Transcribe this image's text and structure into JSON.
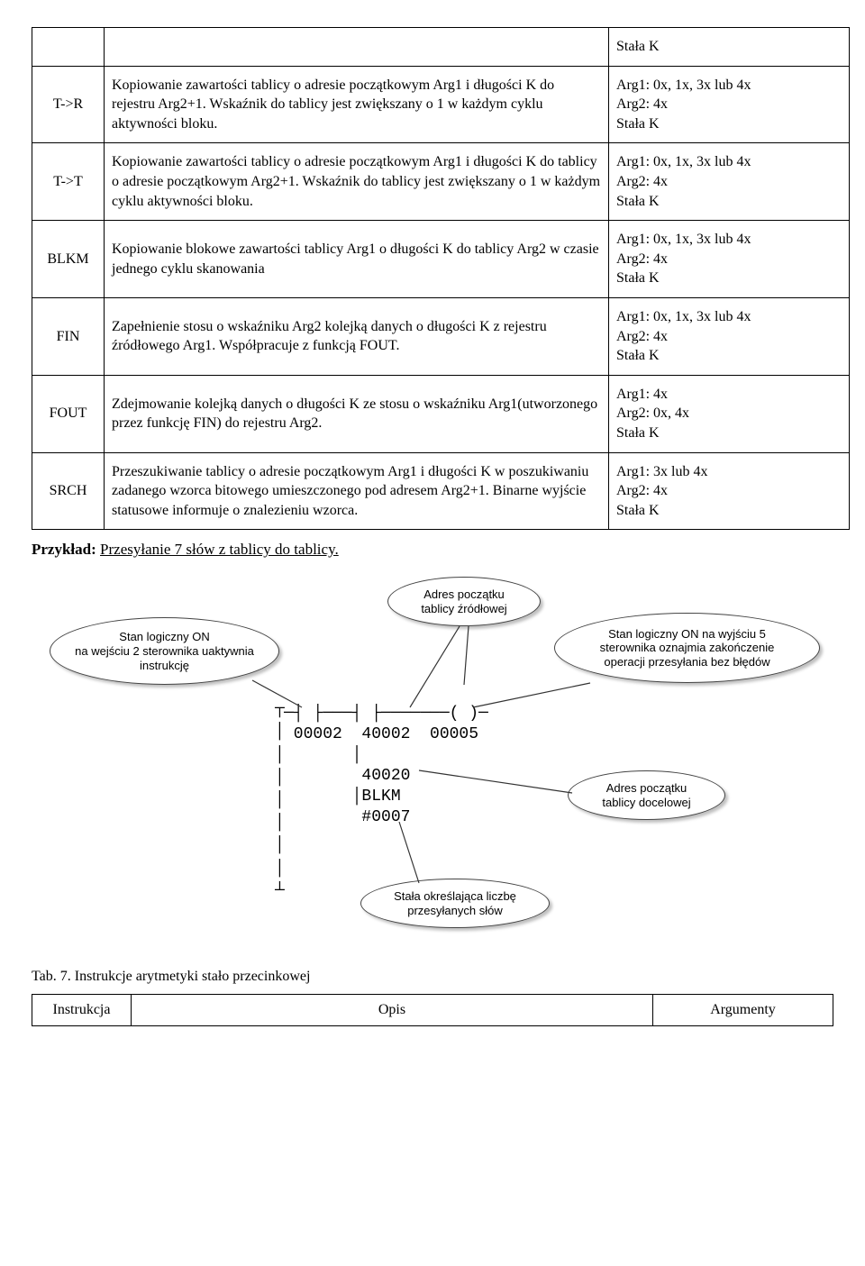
{
  "rows": [
    {
      "code": "",
      "desc": "",
      "args": "Stała K"
    },
    {
      "code": "T->R",
      "desc": "Kopiowanie zawartości tablicy o adresie początkowym Arg1 i długości K do rejestru Arg2+1. Wskaźnik do tablicy jest zwiększany o 1 w każdym cyklu aktywności bloku.",
      "args": "Arg1: 0x, 1x, 3x lub 4x\nArg2: 4x\nStała K"
    },
    {
      "code": "T->T",
      "desc": "Kopiowanie zawartości tablicy o adresie początkowym Arg1 i długości K do tablicy o adresie początkowym Arg2+1. Wskaźnik do tablicy jest zwiększany o 1 w każdym cyklu aktywności bloku.",
      "args": "Arg1: 0x, 1x, 3x lub 4x\nArg2: 4x\nStała K"
    },
    {
      "code": "BLKM",
      "desc": "Kopiowanie blokowe zawartości tablicy Arg1 o długości K do tablicy Arg2 w czasie jednego cyklu skanowania",
      "args": "Arg1: 0x, 1x, 3x lub 4x\nArg2: 4x\nStała K"
    },
    {
      "code": "FIN",
      "desc": "Zapełnienie stosu o wskaźniku Arg2 kolejką danych o długości K z rejestru źródłowego Arg1. Współpracuje z funkcją FOUT.",
      "args": "Arg1: 0x, 1x, 3x lub 4x\nArg2: 4x\nStała K"
    },
    {
      "code": "FOUT",
      "desc": "Zdejmowanie kolejką danych o długości K ze stosu o wskaźniku Arg1(utworzonego przez funkcję FIN) do rejestru Arg2.",
      "args": "Arg1: 4x\nArg2: 0x, 4x\nStała K"
    },
    {
      "code": "SRCH",
      "desc": "Przeszukiwanie tablicy o adresie początkowym Arg1 i długości K w poszukiwaniu zadanego wzorca bitowego umieszczonego pod adresem Arg2+1. Binarne wyjście statusowe informuje o znalezieniu wzorca.",
      "args": "Arg1: 3x lub 4x\nArg2: 4x\nStała K"
    }
  ],
  "example": {
    "label": "Przykład:",
    "title": "Przesyłanie 7 słów z tablicy do tablicy."
  },
  "bubbles": {
    "b1": "Stan logiczny ON\nna wejściu 2 sterownika uaktywnia\ninstrukcję",
    "b2": "Adres początku\ntablicy źródłowej",
    "b3": "Stan logiczny ON  na wyjściu 5\nsterownika oznajmia zakończenie\noperacji przesyłania bez błędów",
    "b4": "Adres początku\ntablicy docelowej",
    "b5": "Stała określająca liczbę\nprzesyłanych słów"
  },
  "ladder": {
    "l1": "─┤ ├───┤ ├───────( )─",
    "l2": " 00002  40002  00005",
    "l3": "       │",
    "l4": "        40020",
    "l5": "       │BLKM",
    "l6": "        #0007"
  },
  "caption": "Tab. 7. Instrukcje arytmetyki stało przecinkowej",
  "footer": {
    "c1": "Instrukcja",
    "c2": "Opis",
    "c3": "Argumenty"
  }
}
